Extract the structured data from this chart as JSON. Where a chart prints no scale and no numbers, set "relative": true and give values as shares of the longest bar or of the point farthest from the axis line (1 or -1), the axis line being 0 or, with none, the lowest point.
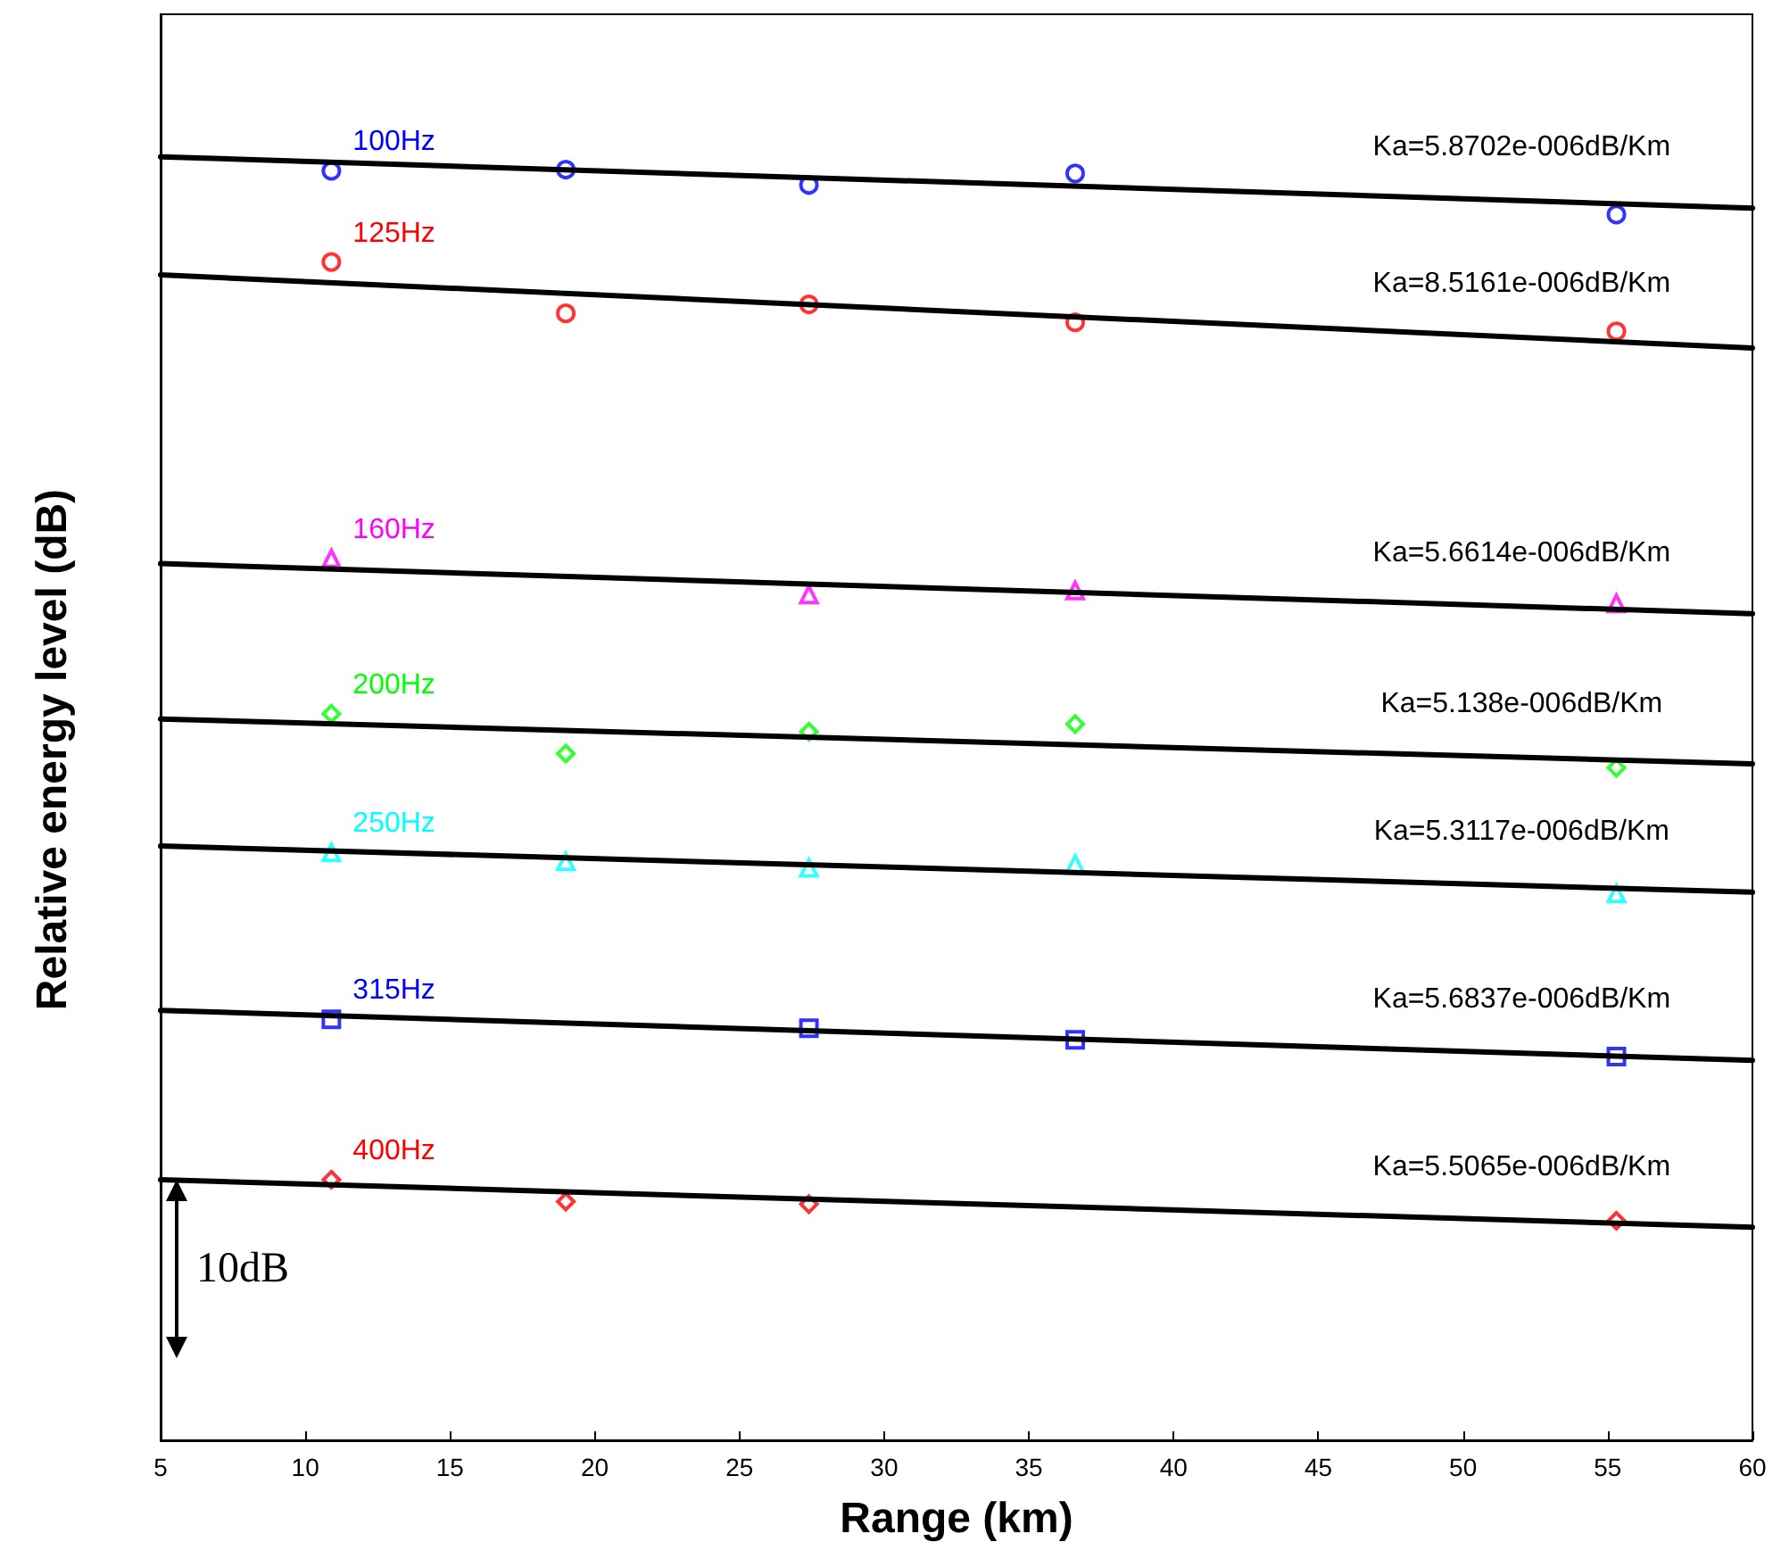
{
  "chart_data": {
    "type": "scatter",
    "relative": true,
    "xlabel": "Range (km)",
    "ylabel": "Relative energy level (dB)",
    "xlim": [
      5,
      60
    ],
    "xticks": [
      5,
      10,
      15,
      20,
      25,
      30,
      35,
      40,
      45,
      50,
      55,
      60
    ],
    "grid": false,
    "legend": false,
    "series": [
      {
        "name": "100Hz",
        "color": "#0000ff",
        "marker": "circle",
        "x": [
          10.9,
          19.0,
          27.4,
          36.6,
          55.3
        ],
        "values": [
          0.989,
          0.99,
          0.978,
          0.987,
          0.955
        ]
      },
      {
        "type": "line",
        "color": "#000000",
        "marker": "none",
        "x": [
          5,
          60
        ],
        "values": [
          1.0,
          0.96
        ]
      },
      {
        "name": "125Hz",
        "color": "#ff0000",
        "marker": "circle",
        "x": [
          10.9,
          19.0,
          27.4,
          36.6,
          55.3
        ],
        "values": [
          0.918,
          0.878,
          0.885,
          0.871,
          0.864
        ]
      },
      {
        "type": "line",
        "color": "#000000",
        "marker": "none",
        "x": [
          5,
          60
        ],
        "values": [
          0.908,
          0.851
        ]
      },
      {
        "name": "160Hz",
        "color": "#ff00ff",
        "marker": "triangle",
        "x": [
          10.9,
          27.4,
          36.6,
          55.3
        ],
        "values": [
          0.687,
          0.659,
          0.662,
          0.652
        ]
      },
      {
        "type": "line",
        "color": "#000000",
        "marker": "none",
        "x": [
          5,
          60
        ],
        "values": [
          0.683,
          0.644
        ]
      },
      {
        "name": "200Hz",
        "color": "#00ff00",
        "marker": "diamond",
        "x": [
          10.9,
          19.0,
          27.4,
          36.6,
          55.3
        ],
        "values": [
          0.566,
          0.535,
          0.552,
          0.558,
          0.524
        ]
      },
      {
        "type": "line",
        "color": "#000000",
        "marker": "none",
        "x": [
          5,
          60
        ],
        "values": [
          0.562,
          0.527
        ]
      },
      {
        "name": "250Hz",
        "color": "#00ffff",
        "marker": "triangle",
        "x": [
          10.9,
          19.0,
          27.4,
          36.6,
          55.3
        ],
        "values": [
          0.458,
          0.451,
          0.446,
          0.449,
          0.426
        ]
      },
      {
        "type": "line",
        "color": "#000000",
        "marker": "none",
        "x": [
          5,
          60
        ],
        "values": [
          0.463,
          0.427
        ]
      },
      {
        "name": "315Hz",
        "color": "#0000ff",
        "marker": "square",
        "x": [
          10.9,
          27.4,
          36.6,
          55.3
        ],
        "values": [
          0.328,
          0.321,
          0.312,
          0.299
        ]
      },
      {
        "type": "line",
        "color": "#000000",
        "marker": "none",
        "x": [
          5,
          60
        ],
        "values": [
          0.335,
          0.296
        ]
      },
      {
        "name": "400Hz",
        "color": "#ff0000",
        "marker": "diamond",
        "x": [
          10.9,
          19.0,
          27.4,
          55.3
        ],
        "values": [
          0.203,
          0.186,
          0.184,
          0.171
        ]
      },
      {
        "type": "line",
        "color": "#000000",
        "marker": "none",
        "x": [
          5,
          60
        ],
        "values": [
          0.203,
          0.166
        ]
      }
    ],
    "annotations": [
      "Ka=5.8702e-006dB/Km",
      "Ka=8.5161e-006dB/Km",
      "Ka=5.6614e-006dB/Km",
      "Ka=5.138e-006dB/Km",
      "Ka=5.3117e-006dB/Km",
      "Ka=5.6837e-006dB/Km",
      "Ka=5.5065e-006dB/Km",
      "10dB"
    ]
  }
}
